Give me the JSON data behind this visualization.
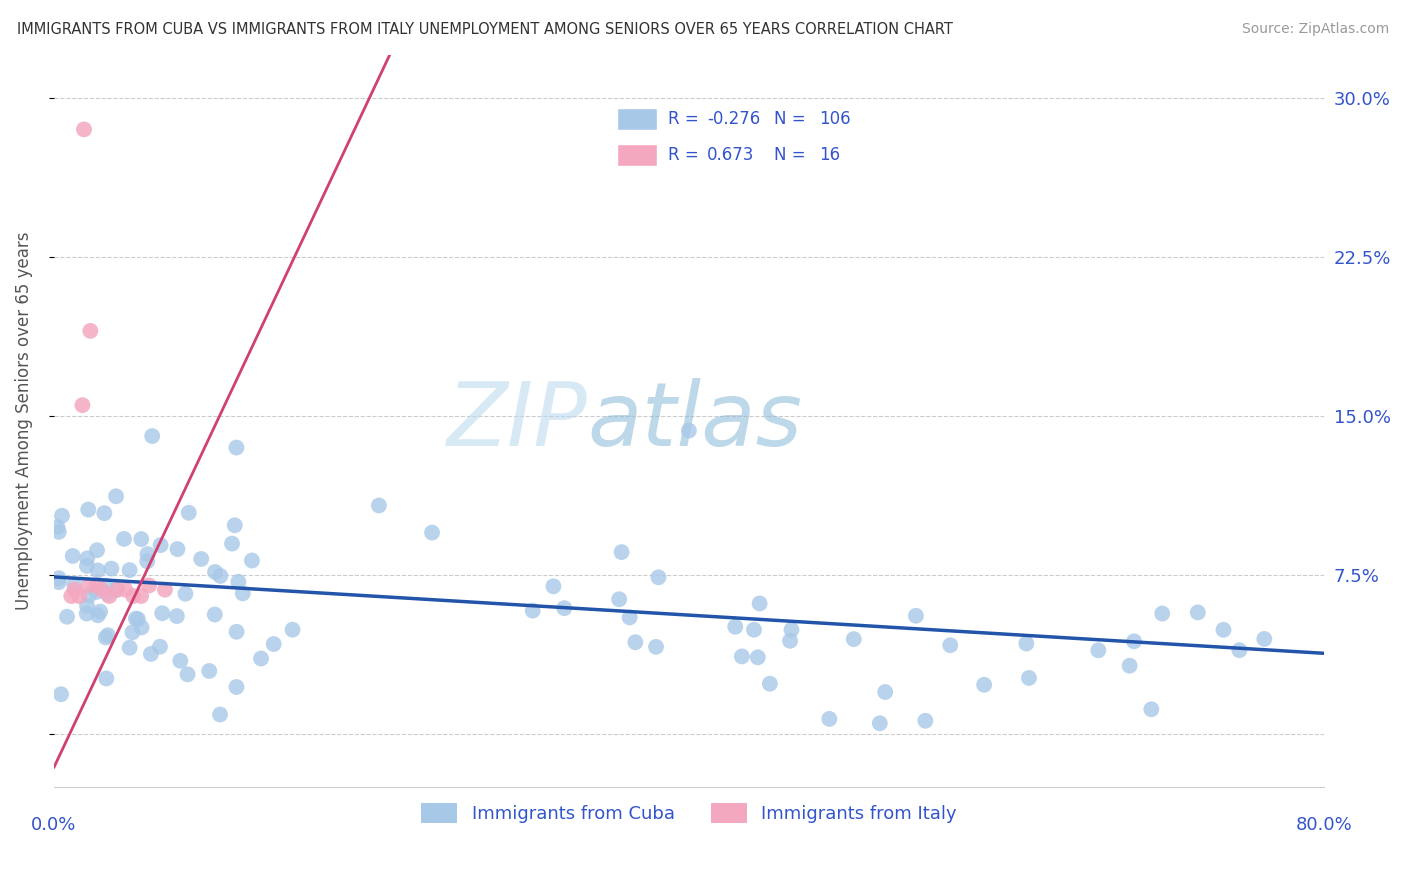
{
  "title": "IMMIGRANTS FROM CUBA VS IMMIGRANTS FROM ITALY UNEMPLOYMENT AMONG SENIORS OVER 65 YEARS CORRELATION CHART",
  "source": "Source: ZipAtlas.com",
  "ylabel": "Unemployment Among Seniors over 65 years",
  "legend_bottom": [
    "Immigrants from Cuba",
    "Immigrants from Italy"
  ],
  "ytick_labels_right": [
    "7.5%",
    "15.0%",
    "22.5%",
    "30.0%"
  ],
  "ytick_values": [
    0.0,
    0.075,
    0.15,
    0.225,
    0.3
  ],
  "xlim": [
    0.0,
    0.8
  ],
  "ylim": [
    -0.025,
    0.32
  ],
  "cuba_R": "-0.276",
  "cuba_N": "106",
  "italy_R": "0.673",
  "italy_N": "16",
  "cuba_color": "#a8c8e8",
  "italy_color": "#f4a8c0",
  "cuba_line_color": "#2255aa",
  "italy_line_color": "#d04070",
  "background_color": "#ffffff",
  "grid_color": "#cccccc",
  "watermark_zip": "ZIP",
  "watermark_atlas": "atlas",
  "legend_text_color": "#3355cc",
  "title_color": "#333333",
  "source_color": "#999999",
  "ylabel_color": "#555555",
  "axis_label_color": "#3355cc"
}
